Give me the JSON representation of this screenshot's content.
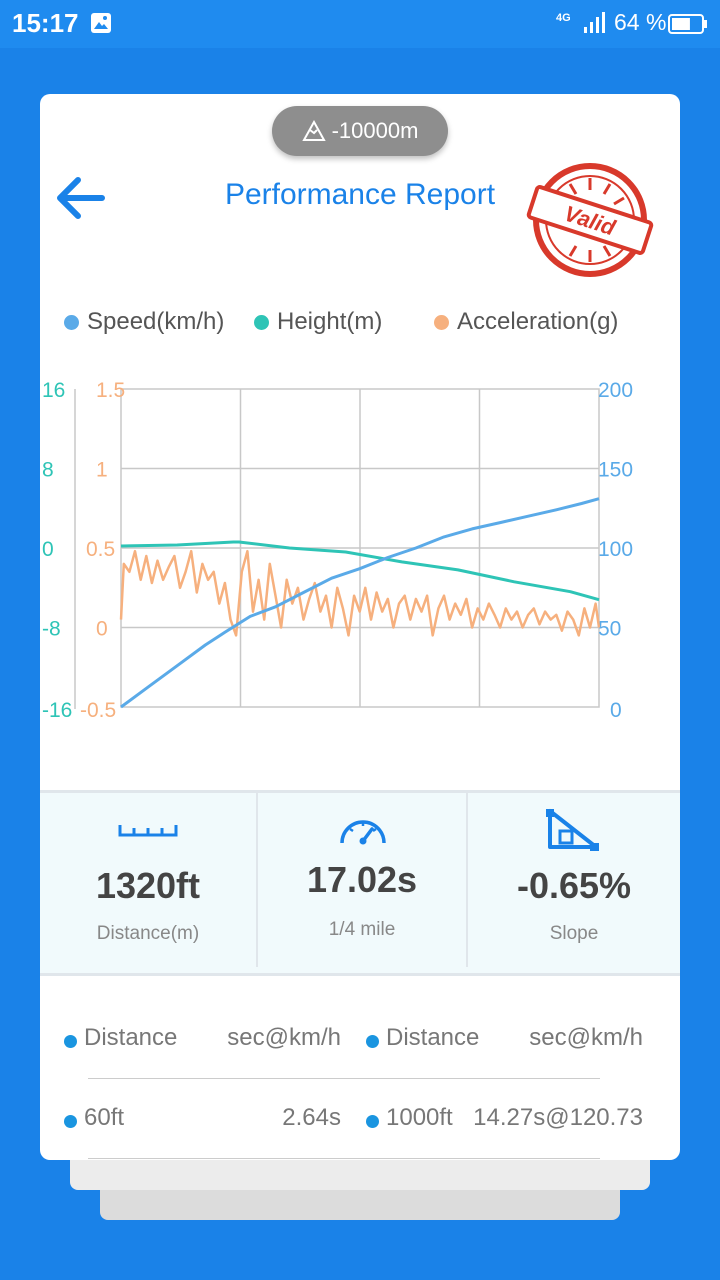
{
  "status_bar": {
    "time": "15:17",
    "network": "4G",
    "battery_text": "64 %",
    "battery_level": 0.64
  },
  "header": {
    "altitude": "-10000m",
    "title": "Performance Report",
    "stamp_text": "Valid"
  },
  "legend": {
    "speed": "Speed(km/h)",
    "height": "Height(m)",
    "acceleration": "Acceleration(g)"
  },
  "colors": {
    "speed": "#5AAAE8",
    "height": "#2EC4B6",
    "acceleration": "#F6B07E",
    "accent": "#1A82E8",
    "stamp": "#D8392B"
  },
  "chart_data": {
    "type": "line",
    "x_range": [
      0,
      17.02
    ],
    "grid": true,
    "axes": {
      "height_ticks": [
        "16",
        "8",
        "0",
        "-8",
        "-16"
      ],
      "height_range": [
        -16,
        16
      ],
      "accel_ticks": [
        "1.5",
        "1",
        "0.5",
        "0",
        "-0.5"
      ],
      "accel_range": [
        -0.5,
        1.5
      ],
      "speed_ticks": [
        "200",
        "150",
        "100",
        "50",
        "0"
      ],
      "speed_range": [
        0,
        200
      ]
    },
    "series": [
      {
        "name": "Speed(km/h)",
        "axis": "speed",
        "x": [
          0,
          1,
          2,
          3,
          3.7,
          4.6,
          5.5,
          6.5,
          7.5,
          8.5,
          9.5,
          10.5,
          11.5,
          12.5,
          13.5,
          14.5,
          15.5,
          16.4,
          17.02
        ],
        "y": [
          0,
          13,
          26,
          39,
          47,
          57,
          63,
          72,
          81,
          87,
          94,
          100,
          107,
          112,
          116,
          120,
          124,
          128,
          131
        ]
      },
      {
        "name": "Height(m)",
        "axis": "height",
        "x": [
          0,
          2,
          4,
          4.2,
          6,
          8,
          10,
          12,
          14,
          16,
          17.02
        ],
        "y": [
          0.2,
          0.3,
          0.6,
          0.6,
          0,
          -0.4,
          -1.4,
          -2.2,
          -3.4,
          -4.4,
          -5.2
        ]
      },
      {
        "name": "Acceleration(g)",
        "axis": "acceleration",
        "x": [
          0,
          0.1,
          0.3,
          0.5,
          0.7,
          0.9,
          1.1,
          1.3,
          1.5,
          1.7,
          1.9,
          2.1,
          2.3,
          2.5,
          2.7,
          2.9,
          3.1,
          3.3,
          3.5,
          3.7,
          3.9,
          4.1,
          4.3,
          4.5,
          4.7,
          4.9,
          5.1,
          5.3,
          5.5,
          5.7,
          5.9,
          6.1,
          6.3,
          6.5,
          6.7,
          6.9,
          7.1,
          7.3,
          7.5,
          7.7,
          7.9,
          8.1,
          8.3,
          8.5,
          8.7,
          8.9,
          9.1,
          9.3,
          9.5,
          9.7,
          9.9,
          10.1,
          10.3,
          10.5,
          10.7,
          10.9,
          11.1,
          11.3,
          11.5,
          11.7,
          11.9,
          12.1,
          12.3,
          12.5,
          12.7,
          12.9,
          13.1,
          13.3,
          13.5,
          13.7,
          13.9,
          14.1,
          14.3,
          14.5,
          14.7,
          14.9,
          15.1,
          15.3,
          15.5,
          15.7,
          15.9,
          16.1,
          16.3,
          16.5,
          16.7,
          16.9,
          17.02
        ],
        "y": [
          0.05,
          0.4,
          0.35,
          0.48,
          0.3,
          0.45,
          0.28,
          0.42,
          0.3,
          0.38,
          0.45,
          0.25,
          0.35,
          0.48,
          0.22,
          0.4,
          0.3,
          0.35,
          0.15,
          0.28,
          0.05,
          -0.05,
          0.35,
          0.48,
          0.1,
          0.3,
          0.05,
          0.4,
          0.2,
          0.0,
          0.3,
          0.15,
          0.25,
          0.05,
          0.18,
          0.28,
          0.1,
          0.2,
          0.0,
          0.25,
          0.12,
          -0.05,
          0.2,
          0.1,
          0.25,
          0.05,
          0.22,
          0.1,
          0.18,
          0.0,
          0.15,
          0.2,
          0.05,
          0.18,
          0.1,
          0.2,
          -0.05,
          0.12,
          0.2,
          0.05,
          0.15,
          0.08,
          0.18,
          0.0,
          0.12,
          0.05,
          0.15,
          0.08,
          0.0,
          0.12,
          0.05,
          0.1,
          0.0,
          0.08,
          0.12,
          0.02,
          0.1,
          0.05,
          0.08,
          -0.02,
          0.1,
          0.05,
          -0.05,
          0.12,
          0.0,
          0.15,
          0.0
        ]
      }
    ]
  },
  "stats": [
    {
      "icon": "ruler-icon",
      "value": "1320ft",
      "label": "Distance(m)"
    },
    {
      "icon": "speedometer-icon",
      "value": "17.02s",
      "label": "1/4 mile"
    },
    {
      "icon": "slope-icon",
      "value": "-0.65%",
      "label": "Slope"
    }
  ],
  "table": {
    "headers": [
      "Distance",
      "sec@km/h",
      "Distance",
      "sec@km/h"
    ],
    "rows": [
      [
        "60ft",
        "2.64s",
        "1000ft",
        "14.27s@120.73"
      ]
    ]
  }
}
